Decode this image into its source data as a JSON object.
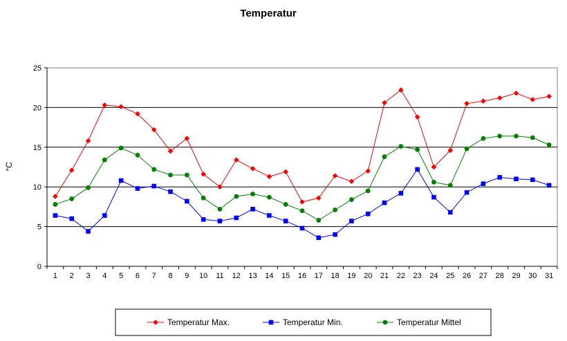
{
  "chart_data": {
    "type": "line",
    "title": "Temperatur",
    "xlabel": "",
    "ylabel": "°C",
    "x": [
      1,
      2,
      3,
      4,
      5,
      6,
      7,
      8,
      9,
      10,
      11,
      12,
      13,
      14,
      15,
      16,
      17,
      18,
      19,
      20,
      21,
      22,
      23,
      24,
      25,
      26,
      27,
      28,
      29,
      30,
      31
    ],
    "ylim": [
      0,
      25
    ],
    "yticks": [
      0,
      5,
      10,
      15,
      20,
      25
    ],
    "grid": "horizontal",
    "legend_position": "bottom",
    "series": [
      {
        "name": "Temperatur Max.",
        "color": "#ff0000",
        "marker": "diamond",
        "values": [
          8.8,
          12.1,
          15.8,
          20.3,
          20.1,
          19.2,
          17.2,
          14.5,
          16.1,
          11.6,
          10.0,
          13.4,
          12.3,
          11.3,
          11.9,
          8.1,
          8.6,
          11.4,
          10.7,
          12.0,
          20.6,
          22.2,
          18.8,
          12.5,
          14.6,
          20.5,
          20.8,
          21.2,
          21.8,
          21.0,
          21.4
        ]
      },
      {
        "name": "Temperatur Min.",
        "color": "#0000ff",
        "marker": "square",
        "values": [
          6.4,
          6.0,
          4.4,
          6.4,
          10.8,
          9.8,
          10.1,
          9.4,
          8.2,
          5.9,
          5.7,
          6.1,
          7.2,
          6.4,
          5.7,
          4.8,
          3.6,
          4.0,
          5.7,
          6.6,
          8.0,
          9.2,
          12.2,
          8.7,
          6.8,
          9.3,
          10.4,
          11.2,
          11.0,
          10.9,
          10.2
        ]
      },
      {
        "name": "Temperatur Mittel",
        "color": "#008000",
        "marker": "circle",
        "values": [
          7.8,
          8.5,
          9.9,
          13.4,
          14.9,
          14.0,
          12.2,
          11.5,
          11.5,
          8.6,
          7.2,
          8.8,
          9.1,
          8.7,
          7.8,
          7.0,
          5.8,
          7.1,
          8.4,
          9.5,
          13.8,
          15.1,
          14.7,
          10.6,
          10.2,
          14.8,
          16.1,
          16.4,
          16.4,
          16.2,
          15.3
        ]
      }
    ]
  }
}
